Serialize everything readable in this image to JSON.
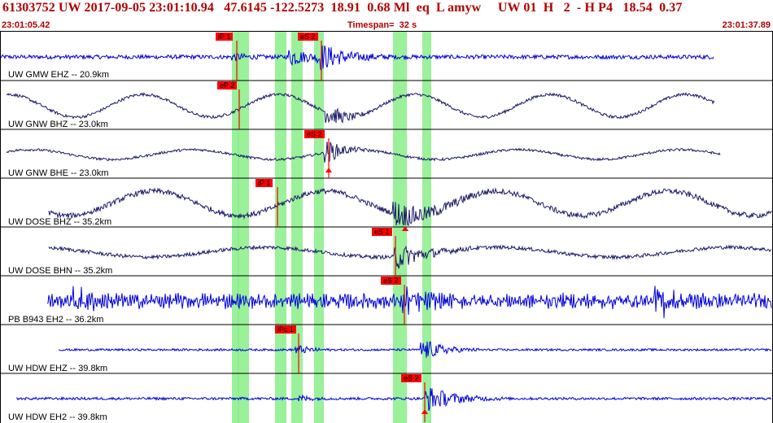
{
  "header": {
    "event_line": "61303752 UW 2017-09-05 23:01:10.94   47.6145 -122.5273  18.91  0.68 Ml  eq  L amyw     UW 01  H   2  - H P4   18.54  0.37",
    "start_time": "23:01:05.42",
    "timespan": "Timespan=  32 s",
    "end_time": "23:01:37.89"
  },
  "colors": {
    "header_text": "#b00000",
    "trace_blue": "#0000dd",
    "trace_navy": "#1a1a66",
    "pick_line": "#ff0000",
    "pick_tag": "#ff0000",
    "uncertainty_band": "#88ee88"
  },
  "channels": [
    {
      "label": "UW GMW EHZ -- 20.9km",
      "color": "trace_blue",
      "picks": [
        {
          "label": "iP 1"
        },
        {
          "label": "eS 2"
        }
      ]
    },
    {
      "label": "UW GNW BHZ -- 23.0km",
      "color": "trace_navy",
      "picks": [
        {
          "label": "eP 2"
        }
      ]
    },
    {
      "label": "UW GNW BHE -- 23.0km",
      "color": "trace_navy",
      "picks": [
        {
          "label": "eS 2"
        }
      ]
    },
    {
      "label": "UW DOSE BHZ -- 35.2km",
      "color": "trace_navy",
      "picks": [
        {
          "label": "iP 1"
        }
      ]
    },
    {
      "label": "UW DOSE BHN -- 35.2km",
      "color": "trace_navy",
      "picks": [
        {
          "label": "eS 1"
        }
      ]
    },
    {
      "label": "PB B943 EH2 -- 36.2km",
      "color": "trace_blue",
      "picks": [
        {
          "label": "eS 2"
        }
      ]
    },
    {
      "label": "UW HDW EHZ -- 39.8km",
      "color": "trace_blue",
      "picks": [
        {
          "label": "iPc 1"
        }
      ]
    },
    {
      "label": "UW HDW EH2 -- 39.8km",
      "color": "trace_blue",
      "picks": [
        {
          "label": "eS 2"
        }
      ]
    }
  ]
}
